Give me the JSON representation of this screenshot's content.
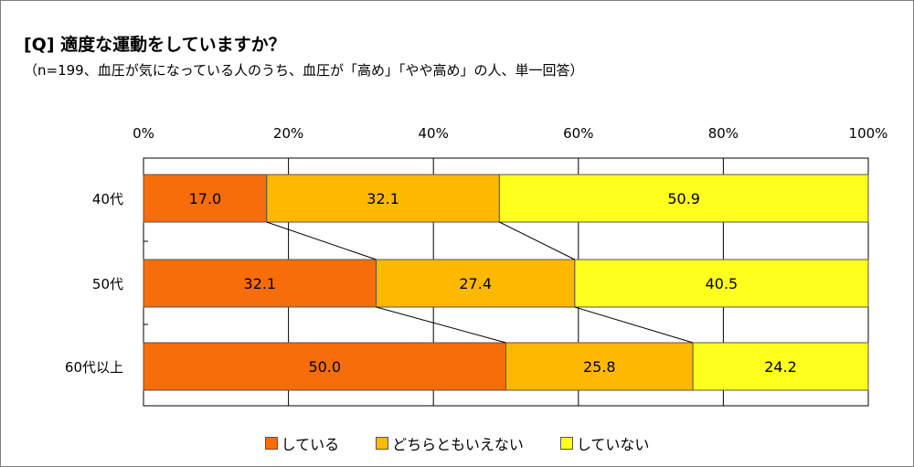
{
  "chart_data": {
    "type": "bar",
    "orientation": "horizontal",
    "stacked": true,
    "title": "[Q] 適度な運動をしていますか？",
    "subtitle": "（n=199、血圧が気になっている人のうち、血圧が「高め」「やや高め」の人、単一回答）",
    "categories": [
      "40代",
      "50代",
      "60代以上"
    ],
    "series": [
      {
        "name": "している",
        "values": [
          17.0,
          32.1,
          50.0
        ],
        "color": "#F76D0A"
      },
      {
        "name": "どちらともいえない",
        "values": [
          32.1,
          27.4,
          25.8
        ],
        "color": "#FFB800"
      },
      {
        "name": "していない",
        "values": [
          50.9,
          40.5,
          24.2
        ],
        "color": "#FFFF1E"
      }
    ],
    "xlim": [
      0,
      100
    ],
    "xticks": [
      "0%",
      "20%",
      "40%",
      "60%",
      "80%",
      "100%"
    ],
    "grid": true,
    "legend_position": "bottom",
    "series_connector_lines": true
  }
}
